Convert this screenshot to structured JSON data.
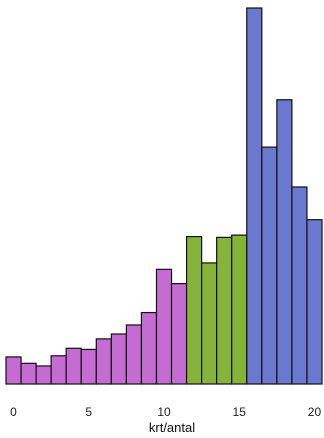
{
  "chart_data": {
    "type": "bar",
    "xlabel": "krt/antal",
    "ylabel": "",
    "title": "",
    "xticks": [
      0,
      5,
      10,
      15,
      20
    ],
    "xlim": [
      -0.5,
      20.5
    ],
    "ylim": [
      0,
      100
    ],
    "grid": false,
    "bins": [
      {
        "x": 0,
        "value": 7.2,
        "group": "low"
      },
      {
        "x": 1,
        "value": 5.5,
        "group": "low"
      },
      {
        "x": 2,
        "value": 4.8,
        "group": "low"
      },
      {
        "x": 3,
        "value": 7.5,
        "group": "low"
      },
      {
        "x": 4,
        "value": 9.5,
        "group": "low"
      },
      {
        "x": 5,
        "value": 9.2,
        "group": "low"
      },
      {
        "x": 6,
        "value": 12.0,
        "group": "low"
      },
      {
        "x": 7,
        "value": 13.3,
        "group": "low"
      },
      {
        "x": 8,
        "value": 15.7,
        "group": "low"
      },
      {
        "x": 9,
        "value": 19.0,
        "group": "low"
      },
      {
        "x": 10,
        "value": 30.5,
        "group": "low"
      },
      {
        "x": 11,
        "value": 26.7,
        "group": "low"
      },
      {
        "x": 12,
        "value": 39.2,
        "group": "mid"
      },
      {
        "x": 13,
        "value": 32.2,
        "group": "mid"
      },
      {
        "x": 14,
        "value": 39.0,
        "group": "mid"
      },
      {
        "x": 15,
        "value": 39.6,
        "group": "mid"
      },
      {
        "x": 16,
        "value": 100.0,
        "group": "high"
      },
      {
        "x": 17,
        "value": 63.0,
        "group": "high"
      },
      {
        "x": 18,
        "value": 75.6,
        "group": "high"
      },
      {
        "x": 19,
        "value": 52.4,
        "group": "high"
      },
      {
        "x": 20,
        "value": 43.7,
        "group": "high"
      }
    ],
    "colors": {
      "low": "#C46CD2",
      "mid": "#86B33A",
      "high": "#6A78CF",
      "stroke": "#111111"
    }
  }
}
